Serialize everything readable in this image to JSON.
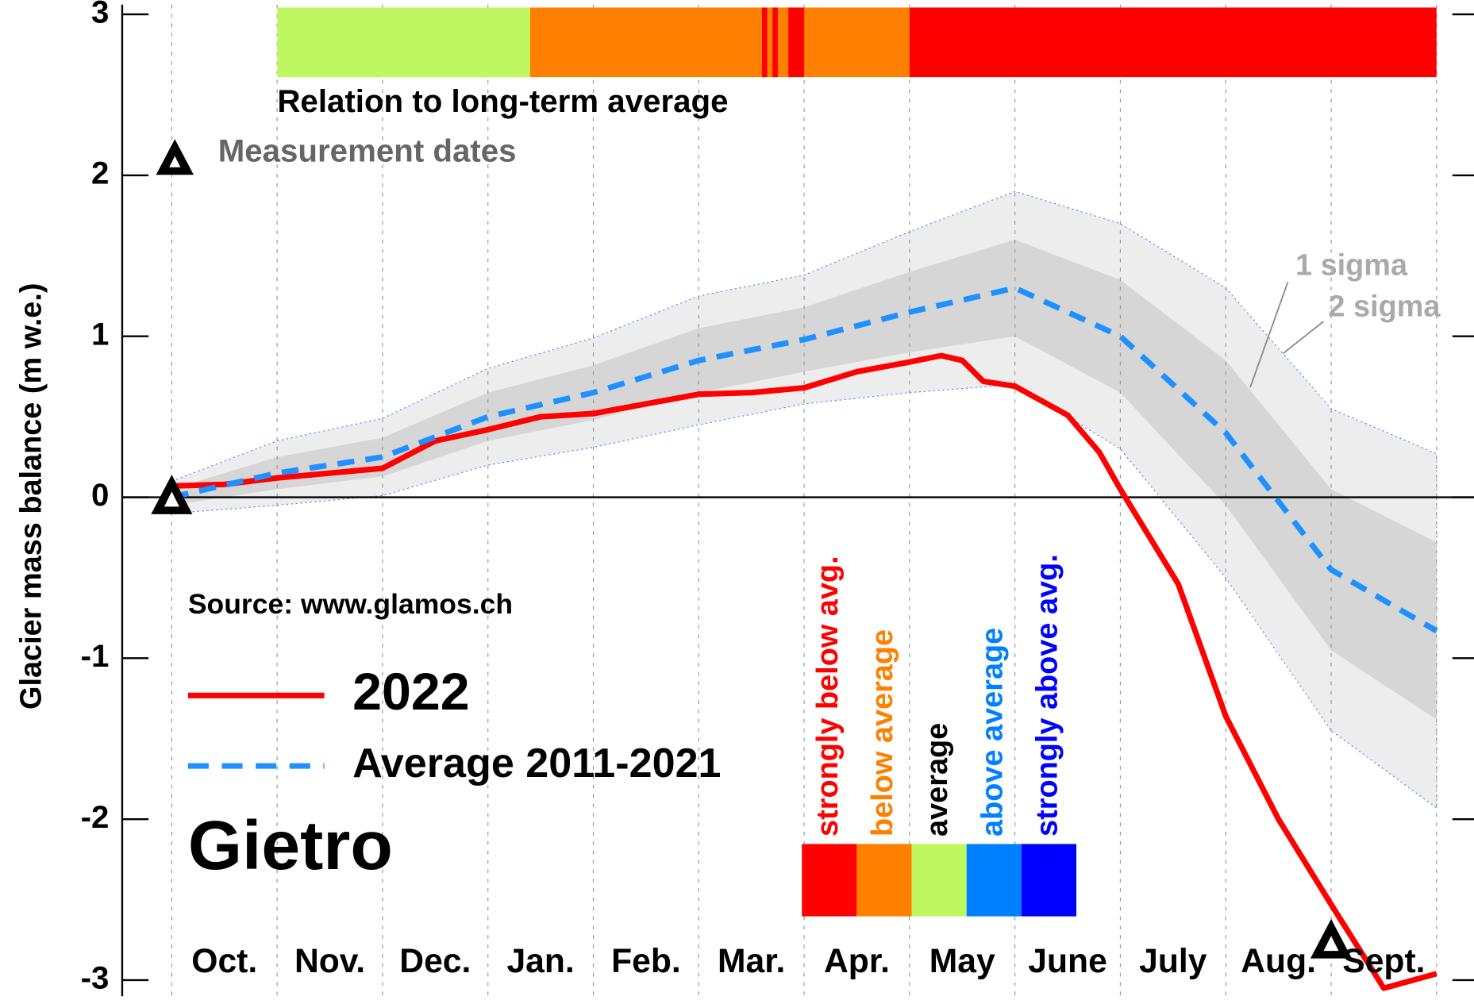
{
  "chart_data": {
    "type": "line",
    "title": "Gietro",
    "source": "Source: www.glamos.ch",
    "ylabel": "Glacier mass balance (m w.e.)",
    "categories": [
      "Oct.",
      "Nov.",
      "Dec.",
      "Jan.",
      "Feb.",
      "Mar.",
      "Apr.",
      "May",
      "June",
      "July",
      "Aug.",
      "Sept."
    ],
    "xlim": [
      -0.47,
      12.4
    ],
    "ylim": [
      -3.1,
      3.06
    ],
    "yticks": [
      -3,
      -2,
      -1,
      0,
      1,
      2,
      3
    ],
    "series": [
      {
        "name": "2022",
        "color": "#ff0000",
        "x": [
          0,
          0.5,
          1,
          1.5,
          2,
          2.5,
          3,
          3.5,
          4,
          4.5,
          5,
          5.5,
          6,
          6.5,
          7,
          7.3,
          7.5,
          7.7,
          8,
          8.5,
          8.8,
          9,
          9.55,
          10,
          10.5,
          11,
          11.5,
          12
        ],
        "values": [
          0.07,
          0.08,
          0.12,
          0.15,
          0.18,
          0.35,
          0.42,
          0.5,
          0.52,
          0.58,
          0.64,
          0.65,
          0.68,
          0.78,
          0.84,
          0.88,
          0.85,
          0.72,
          0.69,
          0.51,
          0.28,
          0.05,
          -0.54,
          -1.36,
          -2.0,
          -2.53,
          -3.05,
          -2.96
        ]
      },
      {
        "name": "Average 2011-2021",
        "color": "#1e90ff",
        "x": [
          0,
          1,
          2,
          3,
          4,
          5,
          6,
          7,
          8,
          9,
          10,
          11,
          12
        ],
        "values": [
          0,
          0.15,
          0.25,
          0.5,
          0.65,
          0.85,
          0.98,
          1.15,
          1.3,
          1.0,
          0.4,
          -0.45,
          -0.83
        ]
      }
    ],
    "bands": [
      {
        "name": "2 sigma",
        "color": "#ededed",
        "x": [
          0,
          1,
          2,
          3,
          4,
          5,
          6,
          7,
          8,
          9,
          10,
          11,
          12
        ],
        "upper": [
          0.1,
          0.35,
          0.49,
          0.8,
          0.99,
          1.25,
          1.38,
          1.65,
          1.9,
          1.7,
          1.3,
          0.55,
          0.27
        ],
        "lower": [
          -0.1,
          -0.05,
          0.01,
          0.2,
          0.31,
          0.45,
          0.58,
          0.65,
          0.7,
          0.3,
          -0.5,
          -1.45,
          -1.93
        ]
      },
      {
        "name": "1 sigma",
        "color": "#d6d6d6",
        "x": [
          0,
          1,
          2,
          3,
          4,
          5,
          6,
          7,
          8,
          9,
          10,
          11,
          12
        ],
        "upper": [
          0.05,
          0.25,
          0.37,
          0.65,
          0.82,
          1.05,
          1.18,
          1.4,
          1.6,
          1.35,
          0.85,
          0.05,
          -0.28
        ],
        "lower": [
          -0.05,
          0.05,
          0.13,
          0.35,
          0.48,
          0.65,
          0.78,
          0.9,
          1.0,
          0.65,
          -0.05,
          -0.95,
          -1.38
        ]
      }
    ],
    "measurements": {
      "name": "Measurement dates",
      "x": [
        0,
        11
      ],
      "values": [
        0,
        -2.76
      ]
    },
    "relation_bar": {
      "title": "Relation to long-term average",
      "segments": [
        {
          "start": 1.0,
          "end": 3.4,
          "color": "#bff760"
        },
        {
          "start": 3.4,
          "end": 7.0,
          "color": "#ff8000"
        },
        {
          "start": 5.6,
          "end": 5.65,
          "color": "#ff0000"
        },
        {
          "start": 5.7,
          "end": 5.75,
          "color": "#ff0000"
        },
        {
          "start": 5.85,
          "end": 6.0,
          "color": "#ff0000"
        },
        {
          "start": 7.0,
          "end": 12.0,
          "color": "#ff0000"
        }
      ]
    },
    "key": [
      {
        "label": "strongly below avg.",
        "color": "#ff0000",
        "text_color": "#ff0000"
      },
      {
        "label": "below average",
        "color": "#ff8000",
        "text_color": "#ff8000"
      },
      {
        "label": "average",
        "color": "#bff760",
        "text_color": "#000000"
      },
      {
        "label": "above average",
        "color": "#0080ff",
        "text_color": "#0080ff"
      },
      {
        "label": "strongly above avg.",
        "color": "#0000ff",
        "text_color": "#0000ff"
      }
    ]
  }
}
